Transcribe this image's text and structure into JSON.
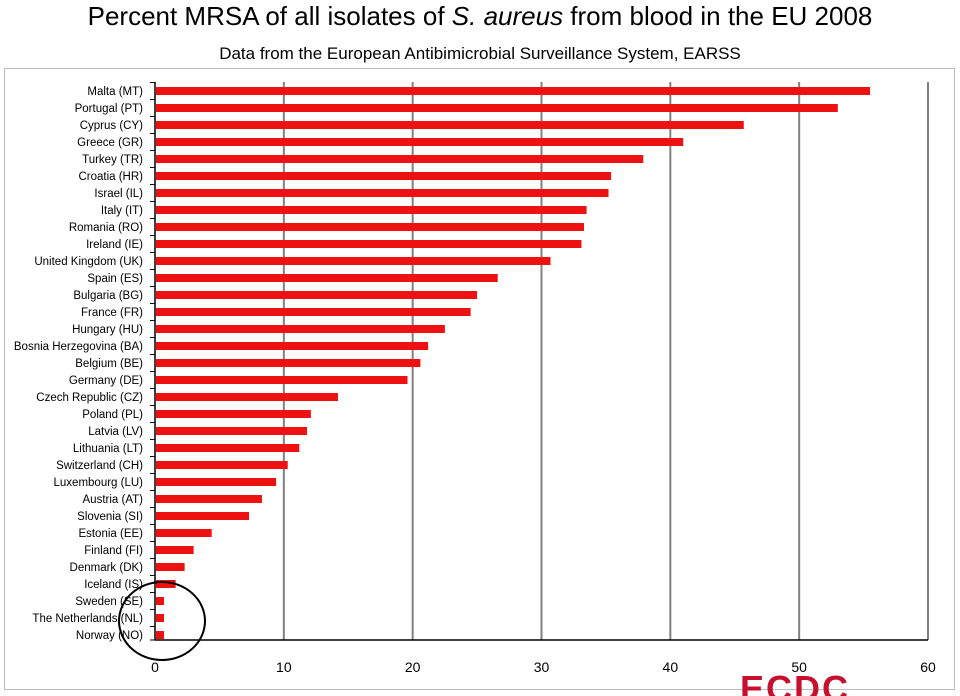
{
  "header": {
    "title_prefix": "Percent MRSA of all isolates of ",
    "title_species": "S. aureus",
    "title_suffix": " from blood in the EU 2008",
    "subtitle": "Data from the European Antibimicrobial Surveillance System, EARSS"
  },
  "colors": {
    "bar": "#ee1111",
    "grid": "#808080",
    "axis": "#000000"
  },
  "logo": {
    "partial_text": "ECDC"
  },
  "chart_data": {
    "type": "bar",
    "orientation": "horizontal",
    "categories": [
      "Malta (MT)",
      "Portugal (PT)",
      "Cyprus (CY)",
      "Greece (GR)",
      "Turkey (TR)",
      "Croatia (HR)",
      "Israel (IL)",
      "Italy (IT)",
      "Romania (RO)",
      "Ireland (IE)",
      "United Kingdom (UK)",
      "Spain (ES)",
      "Bulgaria (BG)",
      "France (FR)",
      "Hungary (HU)",
      "Bosnia Herzegovina (BA)",
      "Belgium (BE)",
      "Germany (DE)",
      "Czech Republic (CZ)",
      "Poland (PL)",
      "Latvia (LV)",
      "Lithuania (LT)",
      "Switzerland (CH)",
      "Luxembourg (LU)",
      "Austria (AT)",
      "Slovenia (SI)",
      "Estonia (EE)",
      "Finland (FI)",
      "Denmark (DK)",
      "Iceland (IS)",
      "Sweden (SE)",
      "The Netherlands (NL)",
      "Norway (NO)"
    ],
    "values": [
      55.5,
      53,
      45.7,
      41,
      37.9,
      35.4,
      35.2,
      33.5,
      33.3,
      33.1,
      30.7,
      26.6,
      25,
      24.5,
      22.5,
      21.2,
      20.6,
      19.6,
      14.2,
      12.1,
      11.8,
      11.2,
      10.3,
      9.4,
      8.3,
      7.3,
      4.4,
      3,
      2.3,
      1.6,
      0.7,
      0.7,
      0.7
    ],
    "xlim": [
      0,
      60
    ],
    "xticks": [
      0,
      10,
      20,
      30,
      40,
      50,
      60
    ],
    "grid": true,
    "legend": "none",
    "annotation": "circle around Iceland, Sweden, The Netherlands, Norway"
  }
}
